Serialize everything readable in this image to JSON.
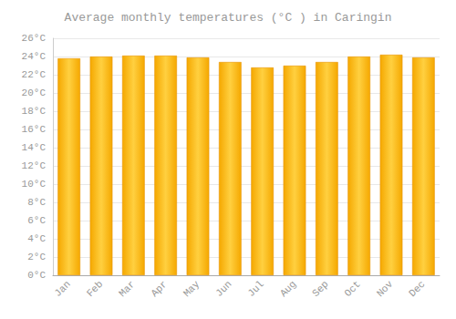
{
  "chart_data": {
    "type": "bar",
    "title": "Average monthly temperatures (°C ) in Caringin",
    "categories": [
      "Jan",
      "Feb",
      "Mar",
      "Apr",
      "May",
      "Jun",
      "Jul",
      "Aug",
      "Sep",
      "Oct",
      "Nov",
      "Dec"
    ],
    "values": [
      23.8,
      24.0,
      24.1,
      24.1,
      23.9,
      23.4,
      22.8,
      23.0,
      23.4,
      24.0,
      24.2,
      23.9
    ],
    "color": "#F5A800",
    "ylim": [
      0,
      26
    ],
    "yticks": [
      {
        "value": 0,
        "label": "0°C"
      },
      {
        "value": 2,
        "label": "2°C"
      },
      {
        "value": 4,
        "label": "4°C"
      },
      {
        "value": 6,
        "label": "6°C"
      },
      {
        "value": 8,
        "label": "8°C"
      },
      {
        "value": 10,
        "label": "10°C"
      },
      {
        "value": 12,
        "label": "12°C"
      },
      {
        "value": 14,
        "label": "14°C"
      },
      {
        "value": 16,
        "label": "16°C"
      },
      {
        "value": 18,
        "label": "18°C"
      },
      {
        "value": 20,
        "label": "20°C"
      },
      {
        "value": 22,
        "label": "22°C"
      },
      {
        "value": 24,
        "label": "24°C"
      },
      {
        "value": 26,
        "label": "26°C"
      }
    ],
    "grid": true
  }
}
